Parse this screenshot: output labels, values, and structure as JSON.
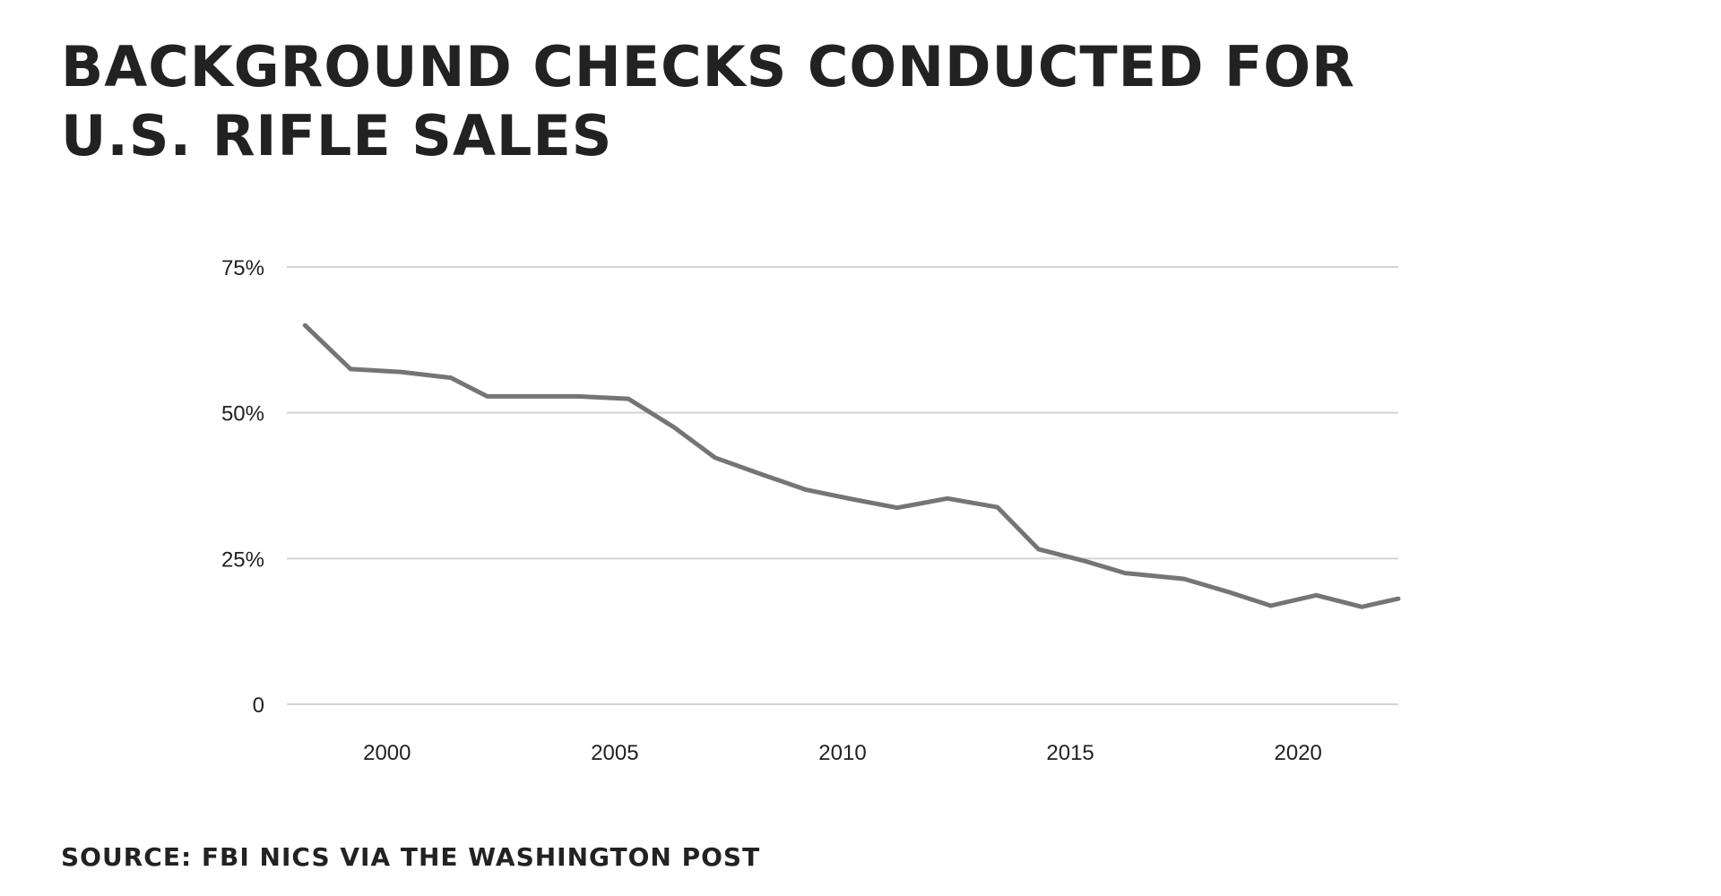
{
  "title_lines": [
    "BACKGROUND CHECKS CONDUCTED FOR",
    "U.S. RIFLE SALES"
  ],
  "source": "SOURCE:  FBI NICS VIA THE WASHINGTON POST",
  "colors": {
    "line": "#757575",
    "grid": "#d3d3d3",
    "text": "#222222",
    "background": "#ffffff"
  },
  "chart_data": {
    "type": "line",
    "title": "BACKGROUND CHECKS CONDUCTED FOR U.S. RIFLE SALES",
    "xlabel": "",
    "ylabel": "",
    "xlim": [
      1997.8,
      2022.2
    ],
    "ylim": [
      0,
      75
    ],
    "grid": true,
    "legend": "none",
    "x_ticks": [
      2000,
      2005,
      2010,
      2015,
      2020
    ],
    "x_tick_labels": [
      "2000",
      "2005",
      "2010",
      "2015",
      "2020"
    ],
    "y_ticks": [
      0,
      25,
      50,
      75
    ],
    "y_tick_labels": [
      "0",
      "25%",
      "50%",
      "75%"
    ],
    "series": [
      {
        "x": [
          1998.2,
          1999.2,
          2000.3,
          2001.4,
          2002.2,
          2003.2,
          2004.2,
          2005.3,
          2006.3,
          2007.2,
          2008.2,
          2009.2,
          2010.2,
          2011.2,
          2012.3,
          2013.4,
          2014.3,
          2015.3,
          2016.2,
          2017.5,
          2018.5,
          2019.4,
          2020.4,
          2021.4,
          2022.2
        ],
        "y": [
          65,
          57.5,
          57,
          56,
          52.8,
          52.8,
          52.8,
          52.4,
          47.5,
          42.3,
          39.5,
          36.8,
          35.2,
          33.7,
          35.3,
          33.8,
          26.6,
          24.6,
          22.5,
          21.5,
          19.2,
          16.9,
          18.7,
          16.7,
          18.1
        ]
      }
    ]
  }
}
